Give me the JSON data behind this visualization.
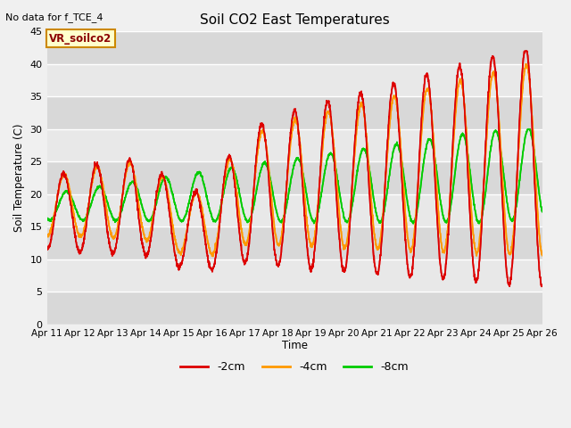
{
  "title": "Soil CO2 East Temperatures",
  "subtitle": "No data for f_TCE_4",
  "ylabel": "Soil Temperature (C)",
  "xlabel": "Time",
  "ylim": [
    0,
    45
  ],
  "yticks": [
    0,
    5,
    10,
    15,
    20,
    25,
    30,
    35,
    40,
    45
  ],
  "xtick_labels": [
    "Apr 11",
    "Apr 12",
    "Apr 13",
    "Apr 14",
    "Apr 15",
    "Apr 16",
    "Apr 17",
    "Apr 18",
    "Apr 19",
    "Apr 20",
    "Apr 21",
    "Apr 22",
    "Apr 23",
    "Apr 24",
    "Apr 25",
    "Apr 26"
  ],
  "box_label": "VR_soilco2",
  "legend_labels": [
    "-2cm",
    "-4cm",
    "-8cm"
  ],
  "colors": {
    "2cm": "#dd0000",
    "4cm": "#ff9900",
    "8cm": "#00cc00"
  },
  "fig_facecolor": "#f0f0f0",
  "plot_bg_color": "#e8e8e8",
  "grid_color": "#ffffff",
  "figsize": [
    6.4,
    4.8
  ],
  "dpi": 100
}
